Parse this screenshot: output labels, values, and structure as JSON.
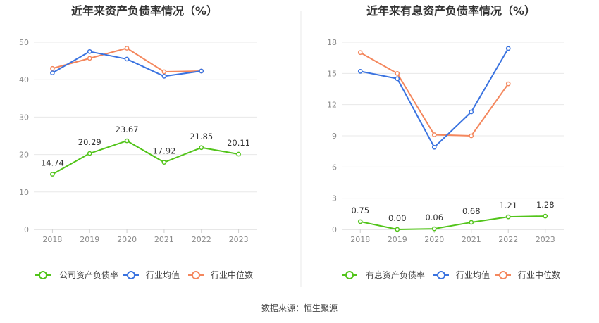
{
  "chart_data": [
    {
      "type": "line",
      "title": "近年来资产负债率情况（%）",
      "categories": [
        "2018",
        "2019",
        "2020",
        "2021",
        "2022",
        "2023"
      ],
      "ylim": [
        0,
        50
      ],
      "yticks": [
        0,
        10,
        20,
        30,
        40,
        50
      ],
      "grid": true,
      "legend": "bottom",
      "series": [
        {
          "name": "公司资产负债率",
          "color": "#52c41a",
          "labels": true,
          "values": [
            14.74,
            20.29,
            23.67,
            17.92,
            21.85,
            20.11
          ],
          "value_labels": [
            "14.74",
            "20.29",
            "23.67",
            "17.92",
            "21.85",
            "20.11"
          ]
        },
        {
          "name": "行业均值",
          "color": "#3a73e0",
          "labels": false,
          "values": [
            41.8,
            47.5,
            45.5,
            40.9,
            42.3,
            null
          ]
        },
        {
          "name": "行业中位数",
          "color": "#f4875d",
          "labels": false,
          "values": [
            43.0,
            45.7,
            48.4,
            42.1,
            42.3,
            null
          ]
        }
      ]
    },
    {
      "type": "line",
      "title": "近年来有息资产负债率情况（%）",
      "categories": [
        "2018",
        "2019",
        "2020",
        "2021",
        "2022",
        "2023"
      ],
      "ylim": [
        0,
        18
      ],
      "yticks": [
        0,
        3,
        6,
        9,
        12,
        15,
        18
      ],
      "grid": true,
      "legend": "bottom",
      "series": [
        {
          "name": "有息资产负债率",
          "color": "#52c41a",
          "labels": true,
          "values": [
            0.75,
            0.0,
            0.06,
            0.68,
            1.21,
            1.28
          ],
          "value_labels": [
            "0.75",
            "0.00",
            "0.06",
            "0.68",
            "1.21",
            "1.28"
          ]
        },
        {
          "name": "行业均值",
          "color": "#3a73e0",
          "labels": false,
          "values": [
            15.2,
            14.5,
            7.9,
            11.3,
            17.4,
            null
          ]
        },
        {
          "name": "行业中位数",
          "color": "#f4875d",
          "labels": false,
          "values": [
            17.0,
            15.0,
            9.1,
            9.0,
            14.0,
            null
          ]
        }
      ]
    }
  ],
  "source_text": "数据来源：恒生聚源"
}
